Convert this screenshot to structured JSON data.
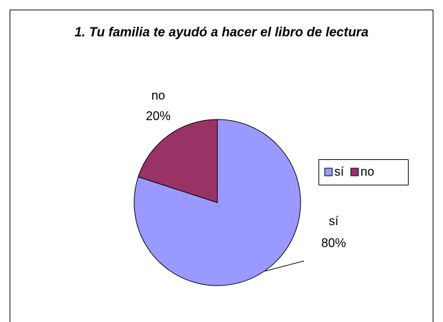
{
  "chart_data": {
    "type": "pie",
    "title": "1. Tu familia te ayudó a hacer el libro de lectura",
    "categories": [
      "sí",
      "no"
    ],
    "values": [
      80,
      20
    ],
    "value_labels": [
      "80%",
      "20%"
    ],
    "colors": [
      "#9999ff",
      "#993366"
    ],
    "legend": "right"
  }
}
